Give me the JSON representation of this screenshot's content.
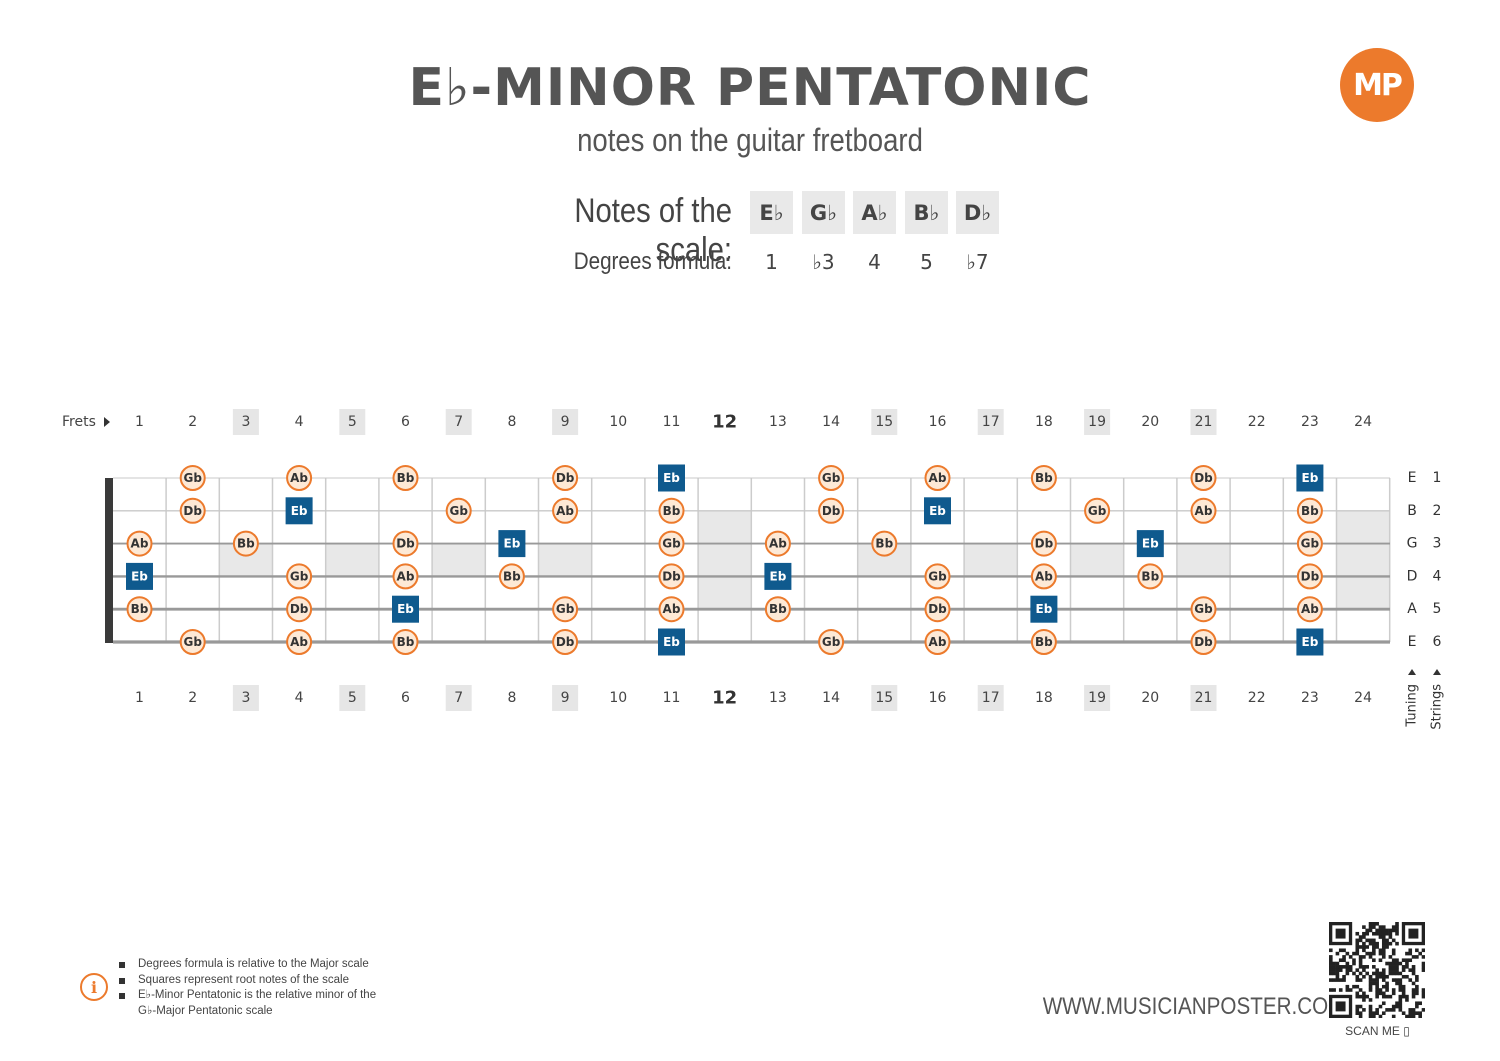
{
  "header": {
    "title": "E♭-MINOR PENTATONIC",
    "subtitle": "notes on the guitar fretboard",
    "logo_text": "MP",
    "brand_color": "#ec7a2c"
  },
  "scale": {
    "notes_label": "Notes of the scale:",
    "degrees_label": "Degrees formula:",
    "notes": [
      "E♭",
      "G♭",
      "A♭",
      "B♭",
      "D♭"
    ],
    "degrees": [
      "1",
      "♭3",
      "4",
      "5",
      "♭7"
    ]
  },
  "fretboard": {
    "frets_label": "Frets",
    "fret_count": 24,
    "fret_numbers": [
      "1",
      "2",
      "3",
      "4",
      "5",
      "6",
      "7",
      "8",
      "9",
      "10",
      "11",
      "12",
      "13",
      "14",
      "15",
      "16",
      "17",
      "18",
      "19",
      "20",
      "21",
      "22",
      "23",
      "24"
    ],
    "highlighted_frets": [
      3,
      5,
      7,
      9,
      15,
      17,
      19,
      21
    ],
    "bold_fret": 12,
    "inlay_frets": [
      3,
      5,
      7,
      9,
      15,
      17,
      19,
      21
    ],
    "double_inlay_frets": [
      12,
      24
    ],
    "strings": [
      {
        "tuning": "E",
        "number": "1"
      },
      {
        "tuning": "B",
        "number": "2"
      },
      {
        "tuning": "G",
        "number": "3"
      },
      {
        "tuning": "D",
        "number": "4"
      },
      {
        "tuning": "A",
        "number": "5"
      },
      {
        "tuning": "E",
        "number": "6"
      }
    ],
    "tuning_label": "Tuning",
    "strings_label": "Strings",
    "root_color": "#0f5a8e",
    "note_color": "#ec7a2c",
    "notes": [
      {
        "string": 1,
        "fret": 2,
        "label": "Gb",
        "root": false
      },
      {
        "string": 1,
        "fret": 4,
        "label": "Ab",
        "root": false
      },
      {
        "string": 1,
        "fret": 6,
        "label": "Bb",
        "root": false
      },
      {
        "string": 1,
        "fret": 9,
        "label": "Db",
        "root": false
      },
      {
        "string": 1,
        "fret": 11,
        "label": "Eb",
        "root": true
      },
      {
        "string": 1,
        "fret": 14,
        "label": "Gb",
        "root": false
      },
      {
        "string": 1,
        "fret": 16,
        "label": "Ab",
        "root": false
      },
      {
        "string": 1,
        "fret": 18,
        "label": "Bb",
        "root": false
      },
      {
        "string": 1,
        "fret": 21,
        "label": "Db",
        "root": false
      },
      {
        "string": 1,
        "fret": 23,
        "label": "Eb",
        "root": true
      },
      {
        "string": 2,
        "fret": 2,
        "label": "Db",
        "root": false
      },
      {
        "string": 2,
        "fret": 4,
        "label": "Eb",
        "root": true
      },
      {
        "string": 2,
        "fret": 7,
        "label": "Gb",
        "root": false
      },
      {
        "string": 2,
        "fret": 9,
        "label": "Ab",
        "root": false
      },
      {
        "string": 2,
        "fret": 11,
        "label": "Bb",
        "root": false
      },
      {
        "string": 2,
        "fret": 14,
        "label": "Db",
        "root": false
      },
      {
        "string": 2,
        "fret": 16,
        "label": "Eb",
        "root": true
      },
      {
        "string": 2,
        "fret": 19,
        "label": "Gb",
        "root": false
      },
      {
        "string": 2,
        "fret": 21,
        "label": "Ab",
        "root": false
      },
      {
        "string": 2,
        "fret": 23,
        "label": "Bb",
        "root": false
      },
      {
        "string": 3,
        "fret": 1,
        "label": "Ab",
        "root": false
      },
      {
        "string": 3,
        "fret": 3,
        "label": "Bb",
        "root": false
      },
      {
        "string": 3,
        "fret": 6,
        "label": "Db",
        "root": false
      },
      {
        "string": 3,
        "fret": 8,
        "label": "Eb",
        "root": true
      },
      {
        "string": 3,
        "fret": 11,
        "label": "Gb",
        "root": false
      },
      {
        "string": 3,
        "fret": 13,
        "label": "Ab",
        "root": false
      },
      {
        "string": 3,
        "fret": 15,
        "label": "Bb",
        "root": false
      },
      {
        "string": 3,
        "fret": 18,
        "label": "Db",
        "root": false
      },
      {
        "string": 3,
        "fret": 20,
        "label": "Eb",
        "root": true
      },
      {
        "string": 3,
        "fret": 23,
        "label": "Gb",
        "root": false
      },
      {
        "string": 4,
        "fret": 1,
        "label": "Eb",
        "root": true
      },
      {
        "string": 4,
        "fret": 4,
        "label": "Gb",
        "root": false
      },
      {
        "string": 4,
        "fret": 6,
        "label": "Ab",
        "root": false
      },
      {
        "string": 4,
        "fret": 8,
        "label": "Bb",
        "root": false
      },
      {
        "string": 4,
        "fret": 11,
        "label": "Db",
        "root": false
      },
      {
        "string": 4,
        "fret": 13,
        "label": "Eb",
        "root": true
      },
      {
        "string": 4,
        "fret": 16,
        "label": "Gb",
        "root": false
      },
      {
        "string": 4,
        "fret": 18,
        "label": "Ab",
        "root": false
      },
      {
        "string": 4,
        "fret": 20,
        "label": "Bb",
        "root": false
      },
      {
        "string": 4,
        "fret": 23,
        "label": "Db",
        "root": false
      },
      {
        "string": 5,
        "fret": 1,
        "label": "Bb",
        "root": false
      },
      {
        "string": 5,
        "fret": 4,
        "label": "Db",
        "root": false
      },
      {
        "string": 5,
        "fret": 6,
        "label": "Eb",
        "root": true
      },
      {
        "string": 5,
        "fret": 9,
        "label": "Gb",
        "root": false
      },
      {
        "string": 5,
        "fret": 11,
        "label": "Ab",
        "root": false
      },
      {
        "string": 5,
        "fret": 13,
        "label": "Bb",
        "root": false
      },
      {
        "string": 5,
        "fret": 16,
        "label": "Db",
        "root": false
      },
      {
        "string": 5,
        "fret": 18,
        "label": "Eb",
        "root": true
      },
      {
        "string": 5,
        "fret": 21,
        "label": "Gb",
        "root": false
      },
      {
        "string": 5,
        "fret": 23,
        "label": "Ab",
        "root": false
      },
      {
        "string": 6,
        "fret": 2,
        "label": "Gb",
        "root": false
      },
      {
        "string": 6,
        "fret": 4,
        "label": "Ab",
        "root": false
      },
      {
        "string": 6,
        "fret": 6,
        "label": "Bb",
        "root": false
      },
      {
        "string": 6,
        "fret": 9,
        "label": "Db",
        "root": false
      },
      {
        "string": 6,
        "fret": 11,
        "label": "Eb",
        "root": true
      },
      {
        "string": 6,
        "fret": 14,
        "label": "Gb",
        "root": false
      },
      {
        "string": 6,
        "fret": 16,
        "label": "Ab",
        "root": false
      },
      {
        "string": 6,
        "fret": 18,
        "label": "Bb",
        "root": false
      },
      {
        "string": 6,
        "fret": 21,
        "label": "Db",
        "root": false
      },
      {
        "string": 6,
        "fret": 23,
        "label": "Eb",
        "root": true
      }
    ]
  },
  "footer": {
    "info": [
      "Degrees formula is relative to the Major scale",
      "Squares represent root notes of the scale",
      "E♭-Minor Pentatonic is the relative minor of the",
      "G♭-Major Pentatonic scale"
    ],
    "website": "WWW.MUSICIANPOSTER.COM",
    "scan_label": "SCAN ME"
  }
}
